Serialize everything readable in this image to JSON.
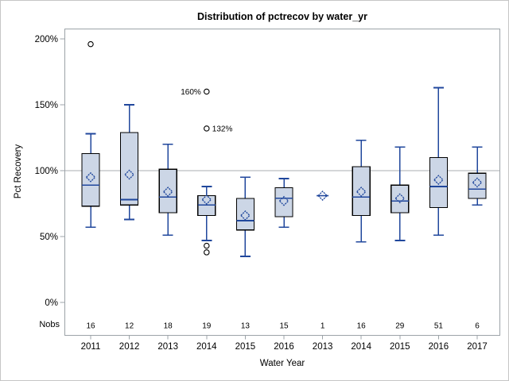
{
  "colors": {
    "background": "#ffffff",
    "canvas_border": "#c6c6c6",
    "frame": "#9ca3a8",
    "reference_line": "#a9adb0",
    "box_fill": "#ccd6e6",
    "box_stroke": "#000000",
    "line_blue": "#20479c",
    "outlier_stroke": "#000000",
    "text": "#000000"
  },
  "chart_data": {
    "type": "boxplot",
    "title": "Distribution of pctrecov by water_yr",
    "xlabel": "Water Year",
    "ylabel": "Pct Recovery",
    "nobs_label": "Nobs",
    "ylim": [
      0,
      200
    ],
    "grid": "reference line at 100% only",
    "legend": "none",
    "y_tick_values": [
      0,
      50,
      100,
      150,
      200
    ],
    "y_tick_labels": [
      "0%",
      "50%",
      "100%",
      "150%",
      "200%"
    ],
    "reference_line": 100,
    "categories": [
      "2011",
      "2012",
      "2013",
      "2014",
      "2015",
      "2016",
      "2013",
      "2014",
      "2015",
      "2016",
      "2017"
    ],
    "nobs": [
      16,
      12,
      18,
      19,
      13,
      15,
      1,
      16,
      29,
      51,
      6
    ],
    "boxes": [
      {
        "category": "2011",
        "n": 16,
        "low": 57,
        "q1": 73,
        "median": 89,
        "q3": 113,
        "high": 128,
        "mean": 95,
        "outliers": [
          {
            "value": 196
          }
        ]
      },
      {
        "category": "2012",
        "n": 12,
        "low": 63,
        "q1": 74,
        "median": 78,
        "q3": 129,
        "high": 150,
        "mean": 97,
        "outliers": []
      },
      {
        "category": "2013",
        "n": 18,
        "low": 51,
        "q1": 68,
        "median": 80,
        "q3": 101,
        "high": 120,
        "mean": 84,
        "outliers": []
      },
      {
        "category": "2014",
        "n": 19,
        "low": 47,
        "q1": 66,
        "median": 74,
        "q3": 81,
        "high": 88,
        "mean": 78,
        "outliers": [
          {
            "value": 160,
            "label": "160%",
            "label_side": "left"
          },
          {
            "value": 132,
            "label": "132%",
            "label_side": "right"
          },
          {
            "value": 43
          },
          {
            "value": 38
          }
        ]
      },
      {
        "category": "2015",
        "n": 13,
        "low": 35,
        "q1": 55,
        "median": 62,
        "q3": 79,
        "high": 95,
        "mean": 66,
        "outliers": []
      },
      {
        "category": "2016",
        "n": 15,
        "low": 57,
        "q1": 65,
        "median": 79,
        "q3": 87,
        "high": 94,
        "mean": 77,
        "outliers": []
      },
      {
        "category": "2013",
        "n": 1,
        "low": 81,
        "q1": 81,
        "median": 81,
        "q3": 81,
        "high": 81,
        "mean": 81,
        "outliers": []
      },
      {
        "category": "2014",
        "n": 16,
        "low": 46,
        "q1": 66,
        "median": 80,
        "q3": 103,
        "high": 123,
        "mean": 84,
        "outliers": []
      },
      {
        "category": "2015",
        "n": 29,
        "low": 47,
        "q1": 68,
        "median": 77,
        "q3": 89,
        "high": 118,
        "mean": 79,
        "outliers": []
      },
      {
        "category": "2016",
        "n": 51,
        "low": 51,
        "q1": 72,
        "median": 88,
        "q3": 110,
        "high": 163,
        "mean": 93,
        "outliers": []
      },
      {
        "category": "2017",
        "n": 6,
        "low": 74,
        "q1": 79,
        "median": 86,
        "q3": 98,
        "high": 118,
        "mean": 91,
        "outliers": []
      }
    ]
  }
}
